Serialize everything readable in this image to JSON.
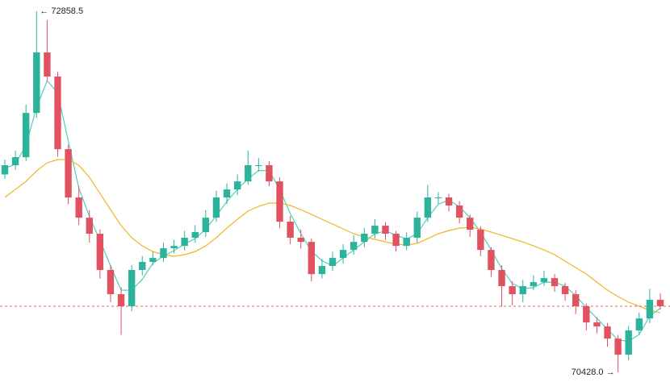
{
  "chart_data": {
    "type": "candlestick",
    "ylim": [
      70363,
      72934
    ],
    "open": [
      71760,
      71822,
      71876,
      72174,
      72581,
      72419,
      71930,
      71605,
      71469,
      71361,
      71117,
      70954,
      70873,
      71117,
      71171,
      71198,
      71263,
      71279,
      71334,
      71372,
      71469,
      71605,
      71659,
      71713,
      71822,
      71822,
      71713,
      71442,
      71334,
      71306,
      71089,
      71144,
      71198,
      71252,
      71306,
      71361,
      71415,
      71361,
      71279,
      71334,
      71469,
      71605,
      71605,
      71551,
      71469,
      71388,
      71252,
      71117,
      71008,
      70954,
      71008,
      71035,
      71062,
      71008,
      70954,
      70873,
      70764,
      70737,
      70655,
      70547,
      70710,
      70791,
      70916
    ],
    "high": [
      71860,
      71920,
      72230,
      72858.5,
      72800,
      72450,
      71960,
      71680,
      71520,
      71390,
      71150,
      71000,
      71150,
      71210,
      71240,
      71300,
      71320,
      71380,
      71420,
      71520,
      71650,
      71700,
      71760,
      71920,
      71870,
      71850,
      71740,
      71480,
      71390,
      71330,
      71190,
      71240,
      71290,
      71350,
      71400,
      71460,
      71440,
      71380,
      71370,
      71510,
      71690,
      71640,
      71630,
      71580,
      71490,
      71410,
      71270,
      71150,
      71040,
      71050,
      71080,
      71110,
      71090,
      71030,
      70980,
      70890,
      70800,
      70760,
      70680,
      70740,
      70830,
      70990,
      70960
    ],
    "low": [
      71730,
      71790,
      71850,
      72140,
      72390,
      71880,
      71560,
      71420,
      71300,
      71060,
      70900,
      70680,
      70840,
      71080,
      71150,
      71170,
      71230,
      71250,
      71300,
      71340,
      71440,
      71560,
      71620,
      71690,
      71780,
      71680,
      71400,
      71290,
      71260,
      71040,
      71060,
      71110,
      71160,
      71220,
      71270,
      71330,
      71320,
      71240,
      71250,
      71300,
      71440,
      71560,
      71510,
      71430,
      71340,
      71210,
      71070,
      70870,
      70880,
      70900,
      70980,
      71010,
      70970,
      70910,
      70820,
      70710,
      70690,
      70600,
      70428.0,
      70510,
      70680,
      70760,
      70850
    ],
    "close": [
      71822,
      71876,
      72174,
      72581,
      72419,
      71930,
      71605,
      71469,
      71361,
      71117,
      70954,
      70873,
      71117,
      71171,
      71198,
      71263,
      71279,
      71334,
      71372,
      71469,
      71605,
      71659,
      71713,
      71822,
      71822,
      71713,
      71442,
      71334,
      71306,
      71089,
      71144,
      71198,
      71252,
      71306,
      71361,
      71415,
      71361,
      71279,
      71334,
      71469,
      71605,
      71605,
      71551,
      71469,
      71388,
      71252,
      71117,
      71008,
      70954,
      71008,
      71035,
      71062,
      71008,
      70954,
      70873,
      70764,
      70737,
      70655,
      70547,
      70710,
      70791,
      70916,
      70873
    ],
    "up_color": "#2bb39b",
    "down_color": "#e0525f",
    "series": [
      {
        "color": "#4fcfbf",
        "values": [
          71800,
          71830,
          71957,
          72210,
          72391,
          72310,
          71985,
          71668,
          71478,
          71316,
          71144,
          70981,
          70981,
          71054,
          71162,
          71211,
          71247,
          71292,
          71328,
          71392,
          71482,
          71578,
          71659,
          71731,
          71786,
          71786,
          71659,
          71496,
          71361,
          71243,
          71180,
          71144,
          71198,
          71252,
          71306,
          71361,
          71379,
          71352,
          71325,
          71361,
          71469,
          71560,
          71587,
          71542,
          71469,
          71370,
          71252,
          71126,
          71026,
          70990,
          70999,
          71035,
          71035,
          71008,
          70945,
          70864,
          70791,
          70719,
          70646,
          70637,
          70683,
          70806,
          70860
        ]
      },
      {
        "color": "#efb622",
        "values": [
          71605,
          71659,
          71713,
          71784,
          71838,
          71860,
          71860,
          71822,
          71741,
          71632,
          71523,
          71415,
          71334,
          71279,
          71241,
          71220,
          71209,
          71220,
          71241,
          71279,
          71334,
          71399,
          71458,
          71513,
          71545,
          71567,
          71567,
          71551,
          71523,
          71491,
          71458,
          71426,
          71393,
          71361,
          71339,
          71323,
          71306,
          71290,
          71285,
          71296,
          71328,
          71361,
          71382,
          71399,
          71404,
          71393,
          71372,
          71350,
          71328,
          71306,
          71279,
          71252,
          71220,
          71176,
          71133,
          71089,
          71035,
          70981,
          70938,
          70900,
          70873,
          70845,
          70829
        ]
      }
    ],
    "price_line": 70873,
    "price_line_color": "#e06666",
    "high_label": "← 72858.5",
    "low_label": "70428.0 →"
  }
}
